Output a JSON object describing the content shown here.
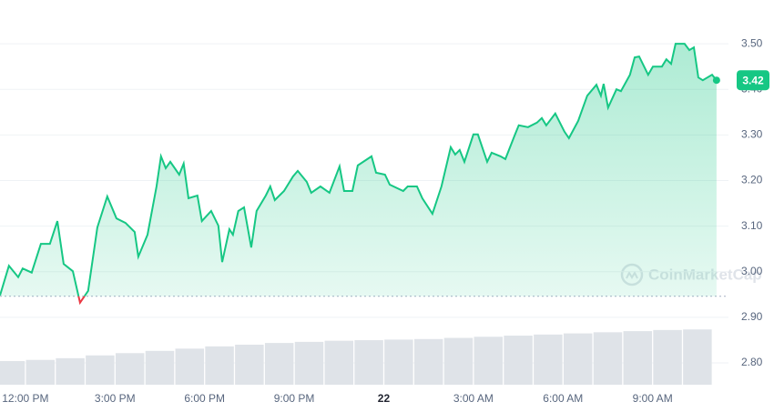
{
  "chart_data": {
    "type": "line",
    "x": [
      -0.85,
      -0.55,
      -0.24,
      -0.09,
      0.21,
      0.52,
      0.82,
      1.07,
      1.28,
      1.59,
      1.83,
      2.1,
      2.41,
      2.74,
      3.05,
      3.35,
      3.66,
      3.78,
      4.09,
      4.39,
      4.54,
      4.7,
      4.85,
      5.15,
      5.3,
      5.46,
      5.76,
      5.91,
      6.22,
      6.46,
      6.59,
      6.83,
      6.95,
      7.13,
      7.32,
      7.56,
      7.74,
      8.05,
      8.2,
      8.35,
      8.66,
      8.96,
      9.12,
      9.42,
      9.57,
      9.88,
      10.18,
      10.52,
      10.67,
      10.95,
      11.13,
      11.59,
      11.74,
      12.04,
      12.2,
      12.65,
      12.8,
      13.11,
      13.29,
      13.63,
      13.93,
      14.24,
      14.39,
      14.54,
      14.7,
      15.0,
      15.15,
      15.46,
      15.61,
      15.91,
      16.07,
      16.37,
      16.52,
      16.83,
      17.13,
      17.29,
      17.44,
      17.74,
      18.05,
      18.2,
      18.51,
      18.81,
      19.12,
      19.27,
      19.36,
      19.51,
      19.79,
      19.94,
      20.24,
      20.4,
      20.55,
      20.85,
      21.01,
      21.31,
      21.46,
      21.62,
      21.77,
      22.07,
      22.23,
      22.38,
      22.53,
      22.68,
      22.99,
      23.14
    ],
    "series": [
      {
        "color": "#16c784",
        "negative_color": "#ea3943",
        "values": [
          2.948,
          3.013,
          2.988,
          3.007,
          2.998,
          3.061,
          3.061,
          3.111,
          3.017,
          3.001,
          2.932,
          2.958,
          3.097,
          3.165,
          3.117,
          3.107,
          3.087,
          3.033,
          3.081,
          3.187,
          3.253,
          3.227,
          3.241,
          3.213,
          3.237,
          3.161,
          3.167,
          3.111,
          3.133,
          3.101,
          3.021,
          3.093,
          3.081,
          3.133,
          3.141,
          3.053,
          3.133,
          3.167,
          3.187,
          3.157,
          3.177,
          3.209,
          3.221,
          3.197,
          3.173,
          3.187,
          3.173,
          3.231,
          3.177,
          3.177,
          3.233,
          3.253,
          3.217,
          3.213,
          3.191,
          3.177,
          3.187,
          3.187,
          3.161,
          3.127,
          3.187,
          3.273,
          3.257,
          3.267,
          3.241,
          3.301,
          3.301,
          3.241,
          3.261,
          3.253,
          3.247,
          3.297,
          3.321,
          3.317,
          3.327,
          3.337,
          3.321,
          3.347,
          3.307,
          3.293,
          3.331,
          3.386,
          3.41,
          3.386,
          3.412,
          3.36,
          3.4,
          3.396,
          3.432,
          3.47,
          3.472,
          3.432,
          3.45,
          3.45,
          3.466,
          3.456,
          3.5,
          3.5,
          3.486,
          3.492,
          3.426,
          3.42,
          3.432,
          3.42
        ]
      }
    ],
    "open_price": 2.946,
    "last_price": 3.42,
    "volume": {
      "color": "#dfe3e8",
      "x": [
        -0.5,
        0.5,
        1.5,
        2.5,
        3.5,
        4.5,
        5.5,
        6.5,
        7.5,
        8.5,
        9.5,
        10.5,
        11.5,
        12.5,
        13.5,
        14.5,
        15.5,
        16.5,
        17.5,
        18.5,
        19.5,
        20.5,
        21.5,
        22.5
      ],
      "values": [
        0.42,
        0.44,
        0.47,
        0.52,
        0.56,
        0.6,
        0.64,
        0.68,
        0.71,
        0.74,
        0.76,
        0.78,
        0.79,
        0.8,
        0.81,
        0.83,
        0.85,
        0.87,
        0.89,
        0.91,
        0.93,
        0.95,
        0.97,
        0.98
      ],
      "ylim": [
        0,
        1
      ]
    },
    "xlim": [
      -0.85,
      23.54
    ],
    "xticks": [
      {
        "value": 0,
        "label": "12:00 PM"
      },
      {
        "value": 3,
        "label": "3:00 PM"
      },
      {
        "value": 6,
        "label": "6:00 PM"
      },
      {
        "value": 9,
        "label": "9:00 PM"
      },
      {
        "value": 12,
        "label": "22"
      },
      {
        "value": 15,
        "label": "3:00 AM"
      },
      {
        "value": 18,
        "label": "6:00 AM"
      },
      {
        "value": 21,
        "label": "9:00 AM"
      }
    ],
    "ylim": [
      2.748,
      3.596
    ],
    "yticks": [
      {
        "value": 2.8,
        "label": "2.80"
      },
      {
        "value": 2.9,
        "label": "2.90"
      },
      {
        "value": 3.0,
        "label": "3.00"
      },
      {
        "value": 3.1,
        "label": "3.10"
      },
      {
        "value": 3.2,
        "label": "3.20"
      },
      {
        "value": 3.3,
        "label": "3.30"
      },
      {
        "value": 3.4,
        "label": "3.40"
      },
      {
        "value": 3.5,
        "label": "3.50"
      }
    ],
    "grid": true,
    "watermark": "CoinMarketCap"
  }
}
